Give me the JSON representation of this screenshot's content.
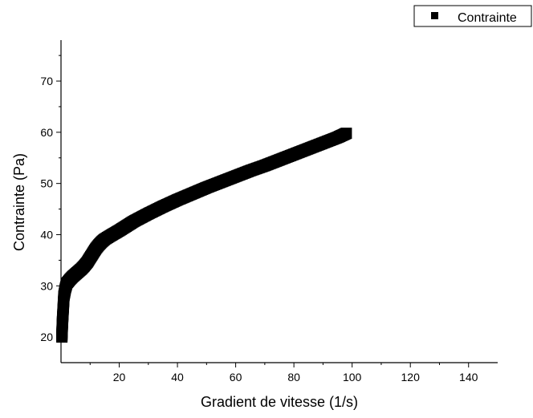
{
  "chart_data": {
    "type": "scatter",
    "title": "",
    "xlabel": "Gradient de vitesse (1/s)",
    "ylabel": "Contrainte (Pa)",
    "xlim": [
      0,
      150
    ],
    "ylim": [
      15,
      78
    ],
    "x_ticks": [
      20,
      40,
      60,
      80,
      100,
      120,
      140
    ],
    "y_ticks": [
      20,
      30,
      40,
      50,
      60,
      70
    ],
    "grid": false,
    "legend_position": "top-right",
    "marker": "square",
    "marker_color": "#000000",
    "series": [
      {
        "name": "Contrainte",
        "points": [
          [
            0.3,
            20
          ],
          [
            0.5,
            23
          ],
          [
            0.8,
            26
          ],
          [
            1,
            28
          ],
          [
            1.5,
            29.5
          ],
          [
            2,
            30.5
          ],
          [
            3,
            31.2
          ],
          [
            4,
            31.8
          ],
          [
            5,
            32.3
          ],
          [
            6,
            32.8
          ],
          [
            7,
            33.3
          ],
          [
            8,
            33.9
          ],
          [
            9,
            34.6
          ],
          [
            10,
            35.5
          ],
          [
            11,
            36.4
          ],
          [
            12,
            37.3
          ],
          [
            13,
            38
          ],
          [
            14,
            38.6
          ],
          [
            15,
            39.1
          ],
          [
            17,
            39.8
          ],
          [
            20,
            40.8
          ],
          [
            25,
            42.6
          ],
          [
            30,
            44.1
          ],
          [
            35,
            45.5
          ],
          [
            40,
            46.8
          ],
          [
            45,
            48
          ],
          [
            50,
            49.2
          ],
          [
            55,
            50.3
          ],
          [
            60,
            51.4
          ],
          [
            65,
            52.5
          ],
          [
            70,
            53.5
          ],
          [
            75,
            54.6
          ],
          [
            80,
            55.7
          ],
          [
            85,
            56.8
          ],
          [
            90,
            57.9
          ],
          [
            95,
            59
          ],
          [
            98,
            59.8
          ]
        ]
      }
    ]
  }
}
